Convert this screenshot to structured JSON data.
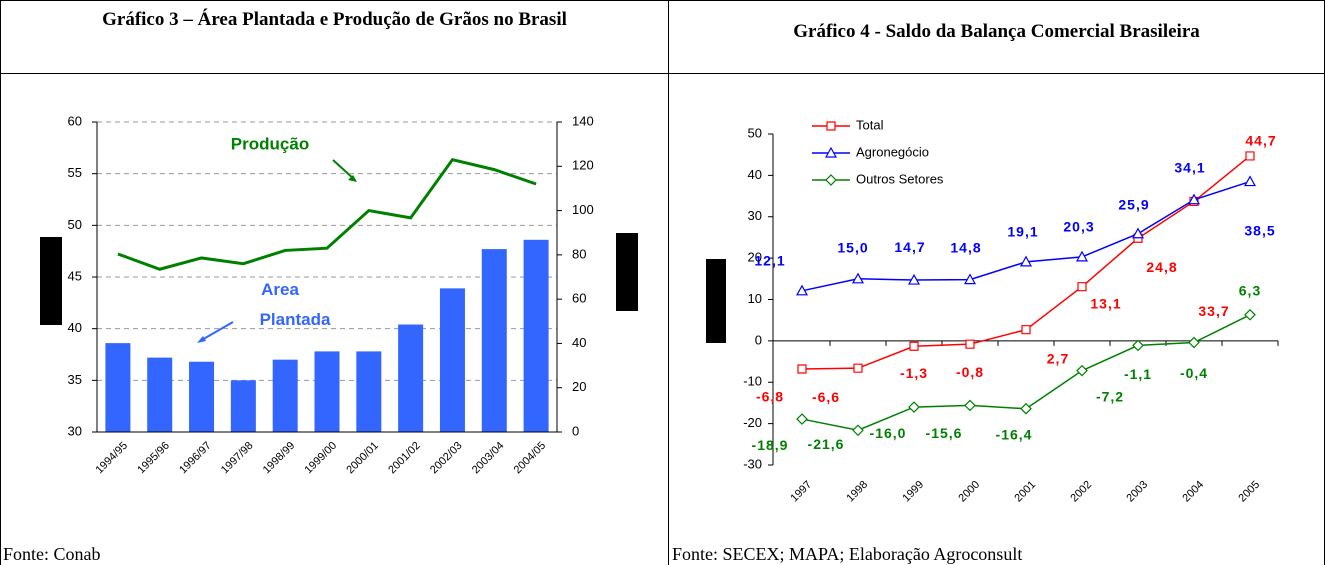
{
  "chart_data": [
    {
      "type": "bar",
      "title": "Gráfico 3 – Área Plantada e Produção de Grãos no Brasil",
      "source": "Fonte: Conab",
      "categories": [
        "1994/95",
        "1995/96",
        "1996/97",
        "1997/98",
        "1998/99",
        "1999/00",
        "2000/01",
        "2001/02",
        "2002/03",
        "2003/04",
        "2004/05"
      ],
      "series": [
        {
          "name": "Area Plantada",
          "type": "bar",
          "color": "#3366ff",
          "values": [
            38.6,
            37.2,
            36.8,
            35.0,
            37.0,
            37.8,
            37.8,
            40.4,
            43.9,
            47.7,
            48.6
          ]
        },
        {
          "name": "Produção",
          "type": "line",
          "axis": "y2",
          "color": "#008000",
          "values": [
            80.4,
            73.5,
            78.6,
            76.0,
            82.0,
            83.0,
            100.0,
            96.7,
            123.0,
            118.5,
            112.0
          ]
        }
      ],
      "ylim": [
        30,
        60
      ],
      "yticks": [
        30,
        35,
        40,
        45,
        50,
        55,
        60
      ],
      "y2lim": [
        0,
        140
      ],
      "y2ticks": [
        0,
        20,
        40,
        60,
        80,
        100,
        120,
        140
      ],
      "grid": true
    },
    {
      "type": "line",
      "title": "Gráfico 4 - Saldo da Balança Comercial Brasileira",
      "source": "Fonte: SECEX; MAPA; Elaboração Agroconsult",
      "categories": [
        "1997",
        "1998",
        "1999",
        "2000",
        "2001",
        "2002",
        "2003",
        "2004",
        "2005"
      ],
      "series": [
        {
          "name": "Total",
          "color": "#ff0000",
          "marker": "square",
          "values": [
            -6.8,
            -6.6,
            -1.3,
            -0.8,
            2.7,
            13.1,
            24.8,
            33.7,
            44.7
          ],
          "value_labels": [
            "-6,8",
            "-6,6",
            "-1,3",
            "-0,8",
            "2,7",
            "13,1",
            "24,8",
            "33,7",
            "44,7"
          ]
        },
        {
          "name": "Agronegócio",
          "color": "#0000ff",
          "marker": "triangle",
          "values": [
            12.1,
            15.0,
            14.7,
            14.8,
            19.1,
            20.3,
            25.9,
            34.1,
            38.5
          ],
          "value_labels": [
            "12,1",
            "15,0",
            "14,7",
            "14,8",
            "19,1",
            "20,3",
            "25,9",
            "34,1",
            "38,5"
          ]
        },
        {
          "name": "Outros Setores",
          "color": "#008000",
          "marker": "diamond",
          "values": [
            -18.9,
            -21.6,
            -16.0,
            -15.6,
            -16.4,
            -7.2,
            -1.1,
            -0.4,
            6.3
          ],
          "value_labels": [
            "-18,9",
            "-21,6",
            "-16,0",
            "-15,6",
            "-16,4",
            "-7,2",
            "-1,1",
            "-0,4",
            "6,3"
          ]
        }
      ],
      "ylim": [
        -30,
        50
      ],
      "yticks": [
        -30,
        -20,
        -10,
        0,
        10,
        20,
        30,
        40,
        50
      ],
      "legend": "top-left"
    }
  ]
}
